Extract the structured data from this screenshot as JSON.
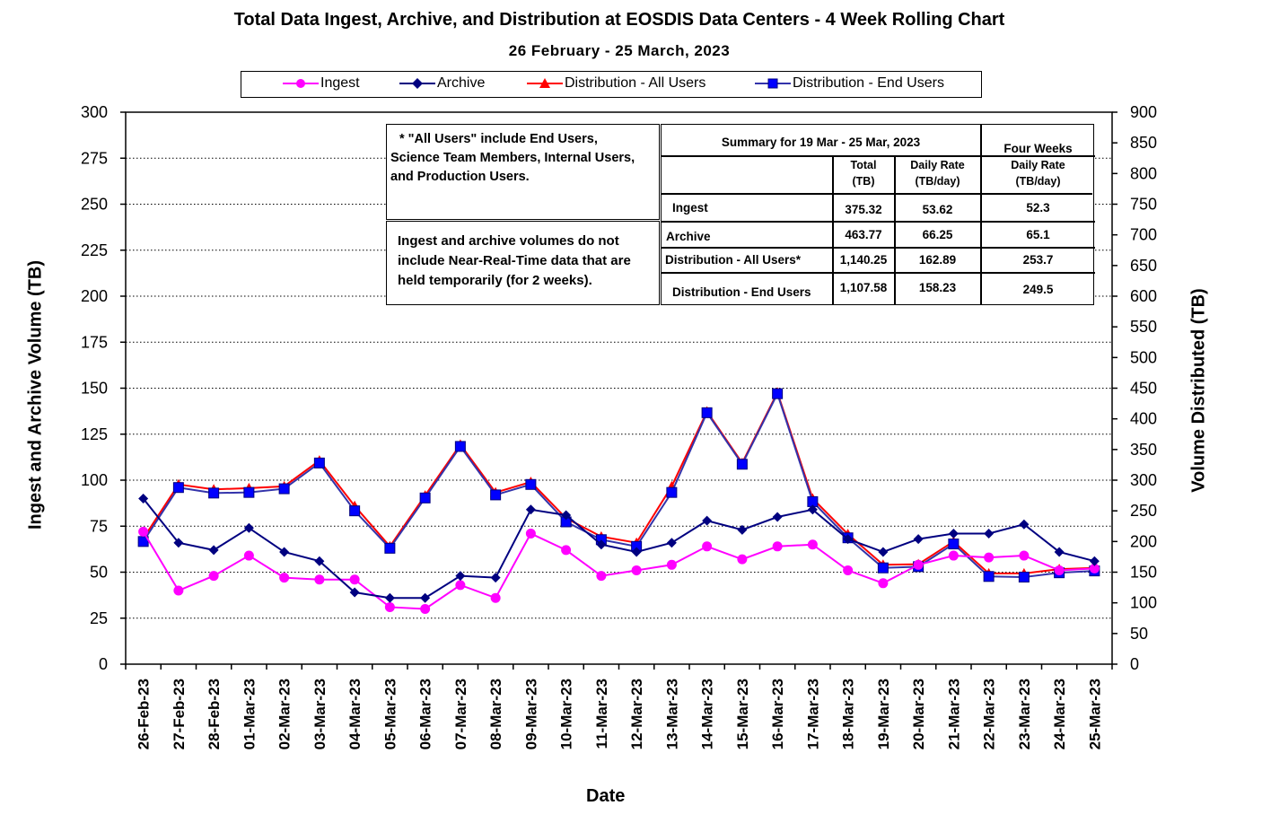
{
  "title": "Total Data Ingest, Archive, and  Distribution at EOSDIS Data Centers - 4 Week Rolling Chart",
  "subtitle": "26  February   -  25  March,  2023",
  "legend": {
    "ingest": "Ingest",
    "archive": "Archive",
    "dist_all": "Distribution - All Users",
    "dist_end": "Distribution - End Users"
  },
  "notes": {
    "all_users_1": " * \"All Users\" include End Users,",
    "all_users_2": "Science Team Members,  Internal Users,",
    "all_users_3": "and Production Users.",
    "nrt_1": "Ingest and archive volumes do not",
    "nrt_2": "include Near-Real-Time data that are",
    "nrt_3": "held temporarily (for 2 weeks)."
  },
  "summary": {
    "heading": "Summary  for  19  Mar   -  25  Mar,  2023",
    "four_weeks": "Four Weeks",
    "col_total": "Total",
    "col_total_unit": "(TB)",
    "col_daily": "Daily Rate",
    "col_daily_unit": "(TB/day)",
    "col_fw_daily": "Daily Rate",
    "col_fw_daily_unit": "(TB/day)",
    "rows": [
      {
        "label": "Ingest",
        "total": "375.32",
        "daily": "53.62",
        "fw": "52.3"
      },
      {
        "label": "Archive",
        "total": "463.77",
        "daily": "66.25",
        "fw": "65.1"
      },
      {
        "label": "Distribution - All Users*",
        "total": "1,140.25",
        "daily": "162.89",
        "fw": "253.7"
      },
      {
        "label": "Distribution - End Users",
        "total": "1,107.58",
        "daily": "158.23",
        "fw": "249.5"
      }
    ]
  },
  "colors": {
    "ingest": "#ff00ff",
    "archive": "#000080",
    "dist_all": "#ff0000",
    "dist_end": "#0000ff",
    "dist_end_line": "#3333aa"
  },
  "chart_data": {
    "type": "line",
    "title": "Total Data Ingest, Archive, and  Distribution at EOSDIS Data Centers - 4 Week Rolling Chart",
    "xlabel": "Date",
    "ylabel": "Ingest and Archive Volume (TB)",
    "y2label": "Volume Distributed (TB)",
    "ylim": [
      0,
      300
    ],
    "y2lim": [
      0,
      900
    ],
    "yticks": [
      "0",
      "25",
      "50",
      "75",
      "100",
      "125",
      "150",
      "175",
      "200",
      "225",
      "250",
      "275",
      "300"
    ],
    "y2ticks": [
      "0",
      "50",
      "100",
      "150",
      "200",
      "250",
      "300",
      "350",
      "400",
      "450",
      "500",
      "550",
      "600",
      "650",
      "700",
      "750",
      "800",
      "850",
      "900"
    ],
    "grid": "horizontal dotted",
    "legend_position": "top",
    "categories": [
      "26-Feb-23",
      "27-Feb-23",
      "28-Feb-23",
      "01-Mar-23",
      "02-Mar-23",
      "03-Mar-23",
      "04-Mar-23",
      "05-Mar-23",
      "06-Mar-23",
      "07-Mar-23",
      "08-Mar-23",
      "09-Mar-23",
      "10-Mar-23",
      "11-Mar-23",
      "12-Mar-23",
      "13-Mar-23",
      "14-Mar-23",
      "15-Mar-23",
      "16-Mar-23",
      "17-Mar-23",
      "18-Mar-23",
      "19-Mar-23",
      "20-Mar-23",
      "21-Mar-23",
      "22-Mar-23",
      "23-Mar-23",
      "24-Mar-23",
      "25-Mar-23"
    ],
    "series": [
      {
        "name": "Ingest",
        "axis": "left",
        "values": [
          72,
          40,
          48,
          59,
          47,
          46,
          46,
          31,
          30,
          43,
          36,
          71,
          62,
          48,
          51,
          54,
          64,
          57,
          64,
          65,
          51,
          44,
          54,
          59,
          58,
          59,
          51,
          52
        ]
      },
      {
        "name": "Archive",
        "axis": "left",
        "values": [
          90,
          66,
          62,
          74,
          61,
          56,
          39,
          36,
          36,
          48,
          47,
          84,
          81,
          65,
          61,
          66,
          78,
          73,
          80,
          84,
          68,
          61,
          68,
          71,
          71,
          76,
          61,
          56
        ]
      },
      {
        "name": "Distribution - All Users",
        "axis": "right",
        "values": [
          205,
          293,
          285,
          287,
          290,
          332,
          258,
          192,
          275,
          358,
          280,
          297,
          238,
          208,
          198,
          290,
          412,
          328,
          443,
          270,
          212,
          162,
          163,
          200,
          148,
          148,
          155,
          157
        ]
      },
      {
        "name": "Distribution - End Users",
        "axis": "right",
        "values": [
          200,
          288,
          279,
          280,
          286,
          328,
          250,
          189,
          271,
          355,
          276,
          293,
          232,
          203,
          192,
          280,
          410,
          326,
          441,
          265,
          206,
          157,
          159,
          196,
          143,
          142,
          149,
          152
        ]
      }
    ]
  }
}
